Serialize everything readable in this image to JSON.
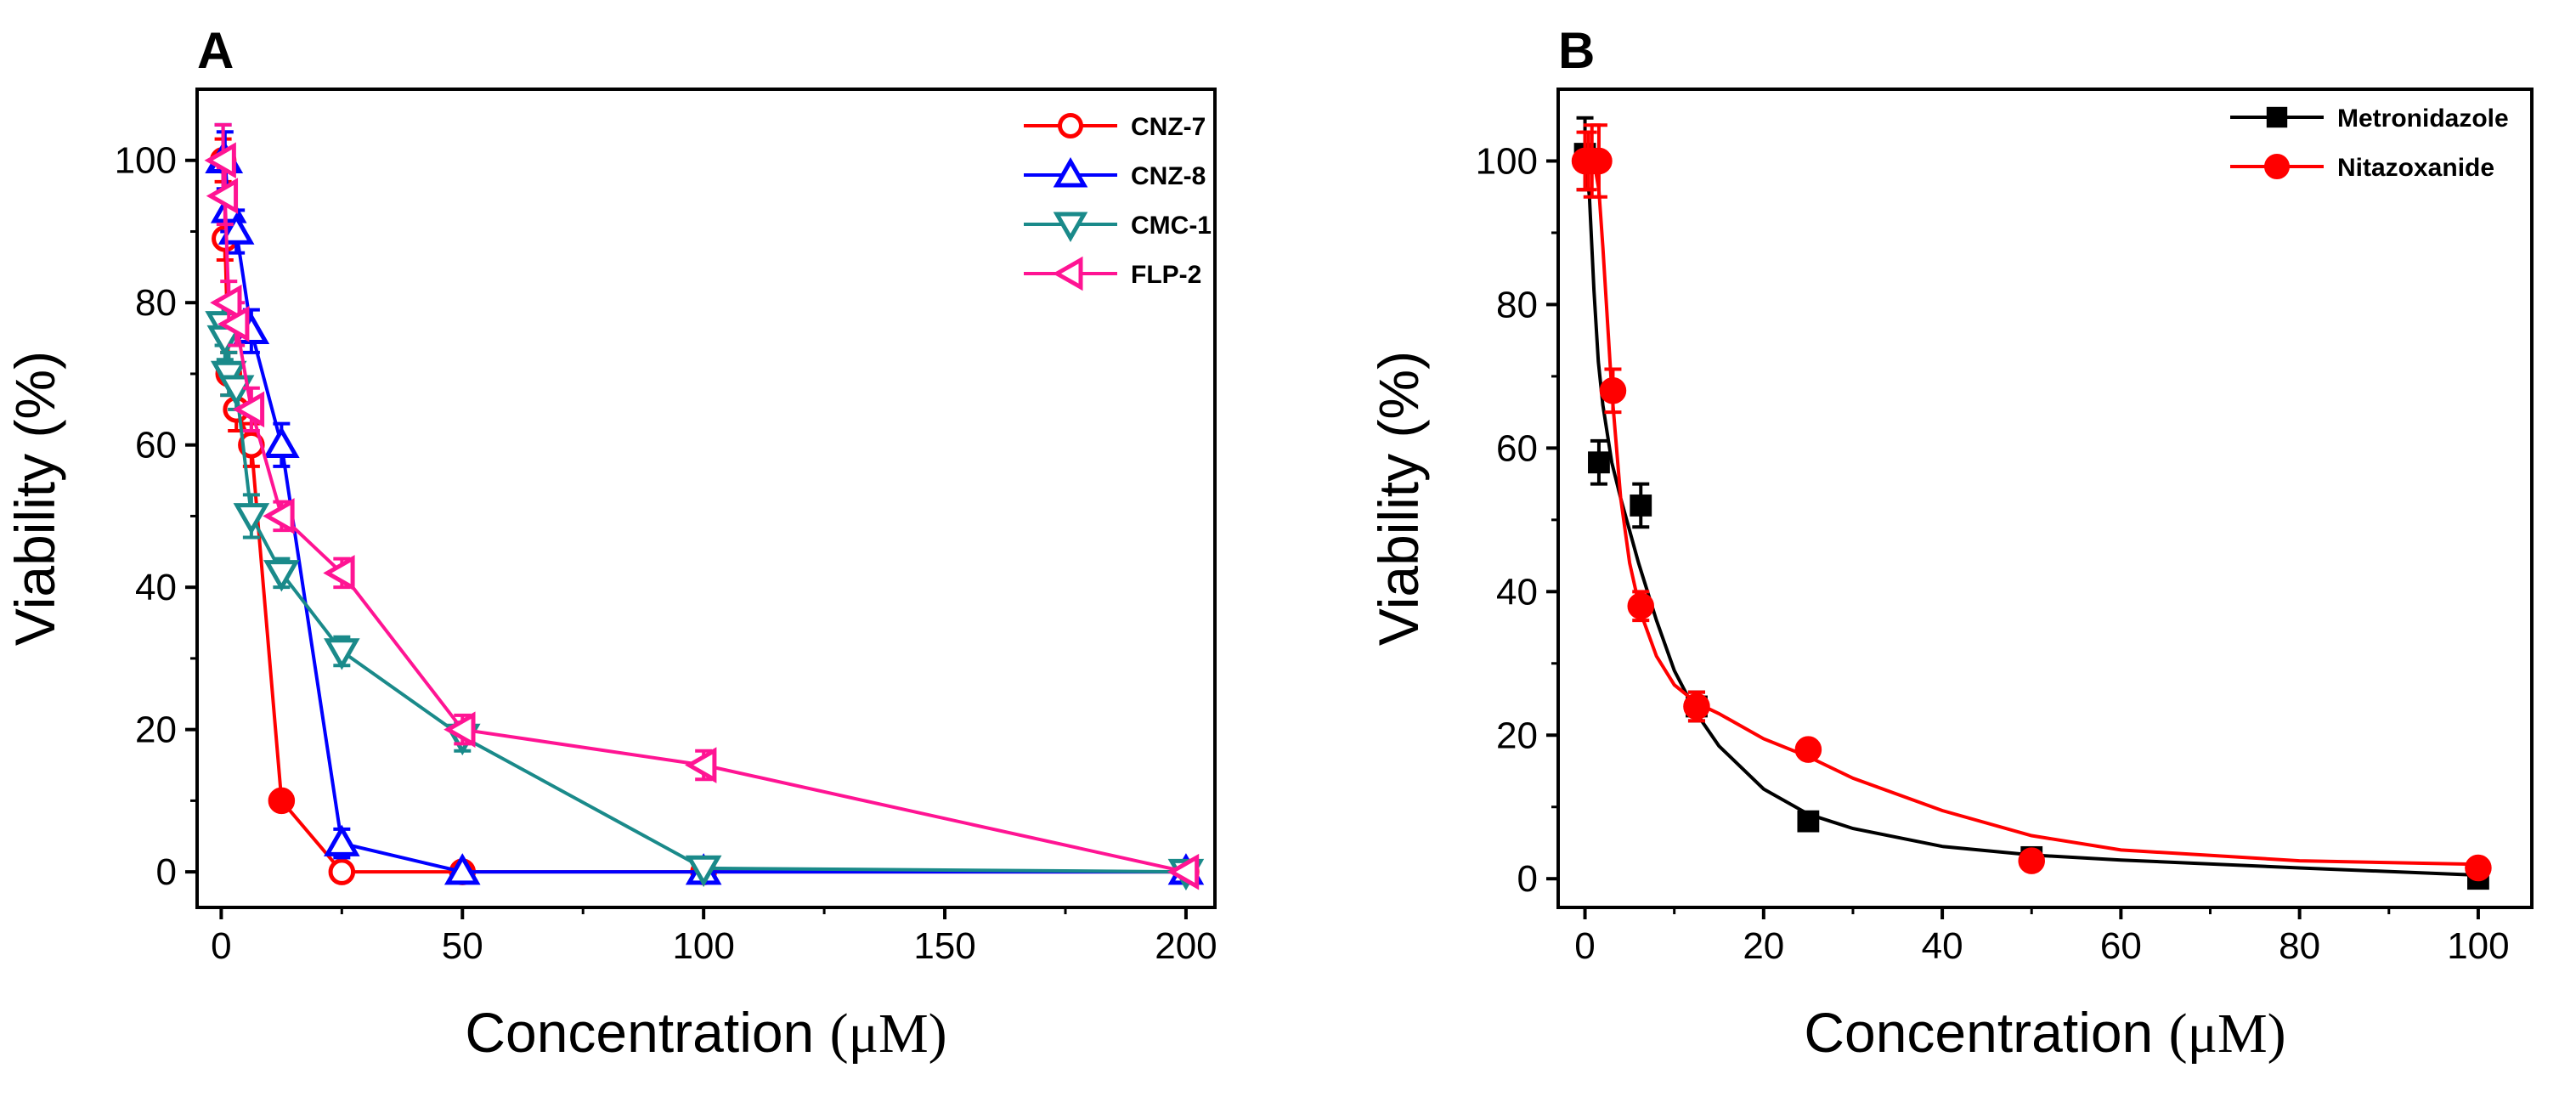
{
  "chart_data": [
    {
      "panel_label": "A",
      "type": "line",
      "xlabel": "Concentration",
      "xunit": "(μM)",
      "ylabel": "Viability (%)",
      "xlim": [
        -5,
        206
      ],
      "ylim": [
        -5,
        110
      ],
      "xticks": [
        0,
        50,
        100,
        150,
        200
      ],
      "yticks": [
        0,
        20,
        40,
        60,
        80,
        100
      ],
      "legend_position": "top-right",
      "series": [
        {
          "name": "CNZ-7",
          "color": "#ff0000",
          "marker": "circle",
          "x": [
            0.39,
            0.78,
            1.56,
            3.13,
            6.25,
            12.5,
            25,
            50,
            100,
            200
          ],
          "y": [
            100,
            89,
            70,
            65,
            60,
            10,
            0,
            0,
            0,
            0
          ],
          "filled": [
            false,
            false,
            false,
            false,
            false,
            true,
            false,
            false,
            false,
            false
          ],
          "err": [
            3,
            3,
            3,
            3,
            3,
            0,
            0,
            0,
            0,
            0
          ]
        },
        {
          "name": "CNZ-8",
          "color": "#0000ff",
          "marker": "triangle-up",
          "x": [
            0.39,
            0.78,
            1.56,
            3.13,
            6.25,
            12.5,
            25,
            50,
            100,
            200
          ],
          "y": [
            100,
            100,
            93,
            90,
            76,
            60,
            4,
            0,
            0,
            0
          ],
          "err": [
            5,
            4,
            3,
            3,
            3,
            3,
            2,
            0,
            0,
            0
          ]
        },
        {
          "name": "CMC-1",
          "color": "#1a8a8a",
          "marker": "triangle-down",
          "x": [
            0.39,
            0.78,
            1.56,
            3.13,
            6.25,
            12.5,
            25,
            50,
            100,
            200
          ],
          "y": [
            77,
            75,
            70,
            68,
            50,
            42,
            31,
            19,
            0.5,
            0
          ],
          "err": [
            3,
            3,
            3,
            3,
            3,
            2,
            2,
            2,
            0,
            0
          ]
        },
        {
          "name": "FLP-2",
          "color": "#ff1493",
          "marker": "triangle-left",
          "x": [
            0.39,
            0.78,
            1.56,
            3.13,
            6.25,
            12.5,
            25,
            50,
            100,
            200
          ],
          "y": [
            100,
            95,
            80,
            77,
            65,
            50,
            42,
            20,
            15,
            0
          ],
          "err": [
            5,
            4,
            3,
            3,
            3,
            2,
            2,
            2,
            2,
            0
          ]
        }
      ]
    },
    {
      "panel_label": "B",
      "type": "scatter",
      "xlabel": "Concentration",
      "xunit": "(μM)",
      "ylabel": "Viability (%)",
      "xlim": [
        -3,
        106
      ],
      "ylim": [
        -4,
        110
      ],
      "xticks": [
        0,
        20,
        40,
        60,
        80,
        100
      ],
      "yticks": [
        0,
        20,
        40,
        60,
        80,
        100
      ],
      "legend_position": "top-right",
      "series": [
        {
          "name": "Metronidazole",
          "color": "#000000",
          "marker": "square",
          "x": [
            0,
            1.56,
            6.25,
            12.5,
            25,
            50,
            100
          ],
          "y": [
            101,
            58,
            52,
            24,
            8,
            3,
            0
          ],
          "err": [
            5,
            3,
            3,
            2,
            1,
            1,
            0
          ],
          "fit": {
            "x": [
              0,
              0.5,
              1,
              1.5,
              2,
              3,
              4,
              6,
              8,
              10,
              12.5,
              15,
              20,
              25,
              30,
              40,
              50,
              60,
              80,
              100
            ],
            "y": [
              101,
              95,
              82,
              72,
              66,
              58,
              53,
              44,
              36,
              29,
              23,
              18.5,
              12.5,
              9,
              7,
              4.5,
              3.3,
              2.6,
              1.5,
              0.5
            ]
          }
        },
        {
          "name": "Nitazoxanide",
          "color": "#ff0000",
          "marker": "circle",
          "x": [
            0,
            0.39,
            0.78,
            1.56,
            3.13,
            6.25,
            12.5,
            25,
            50,
            100
          ],
          "y": [
            100,
            100,
            100,
            100,
            68,
            38,
            24,
            18,
            2.5,
            1.5
          ],
          "err": [
            4,
            4,
            5,
            5,
            3,
            2,
            2,
            1,
            1,
            0
          ],
          "fit": {
            "x": [
              0,
              1,
              1.56,
              2,
              3,
              4,
              5,
              6.25,
              8,
              10,
              12.5,
              15,
              20,
              25,
              30,
              40,
              50,
              60,
              80,
              100
            ],
            "y": [
              100,
              100,
              96,
              88,
              68,
              53,
              44,
              37,
              31,
              27,
              24.5,
              23,
              19.5,
              17,
              14,
              9.5,
              6,
              4,
              2.5,
              2
            ]
          }
        }
      ]
    }
  ]
}
